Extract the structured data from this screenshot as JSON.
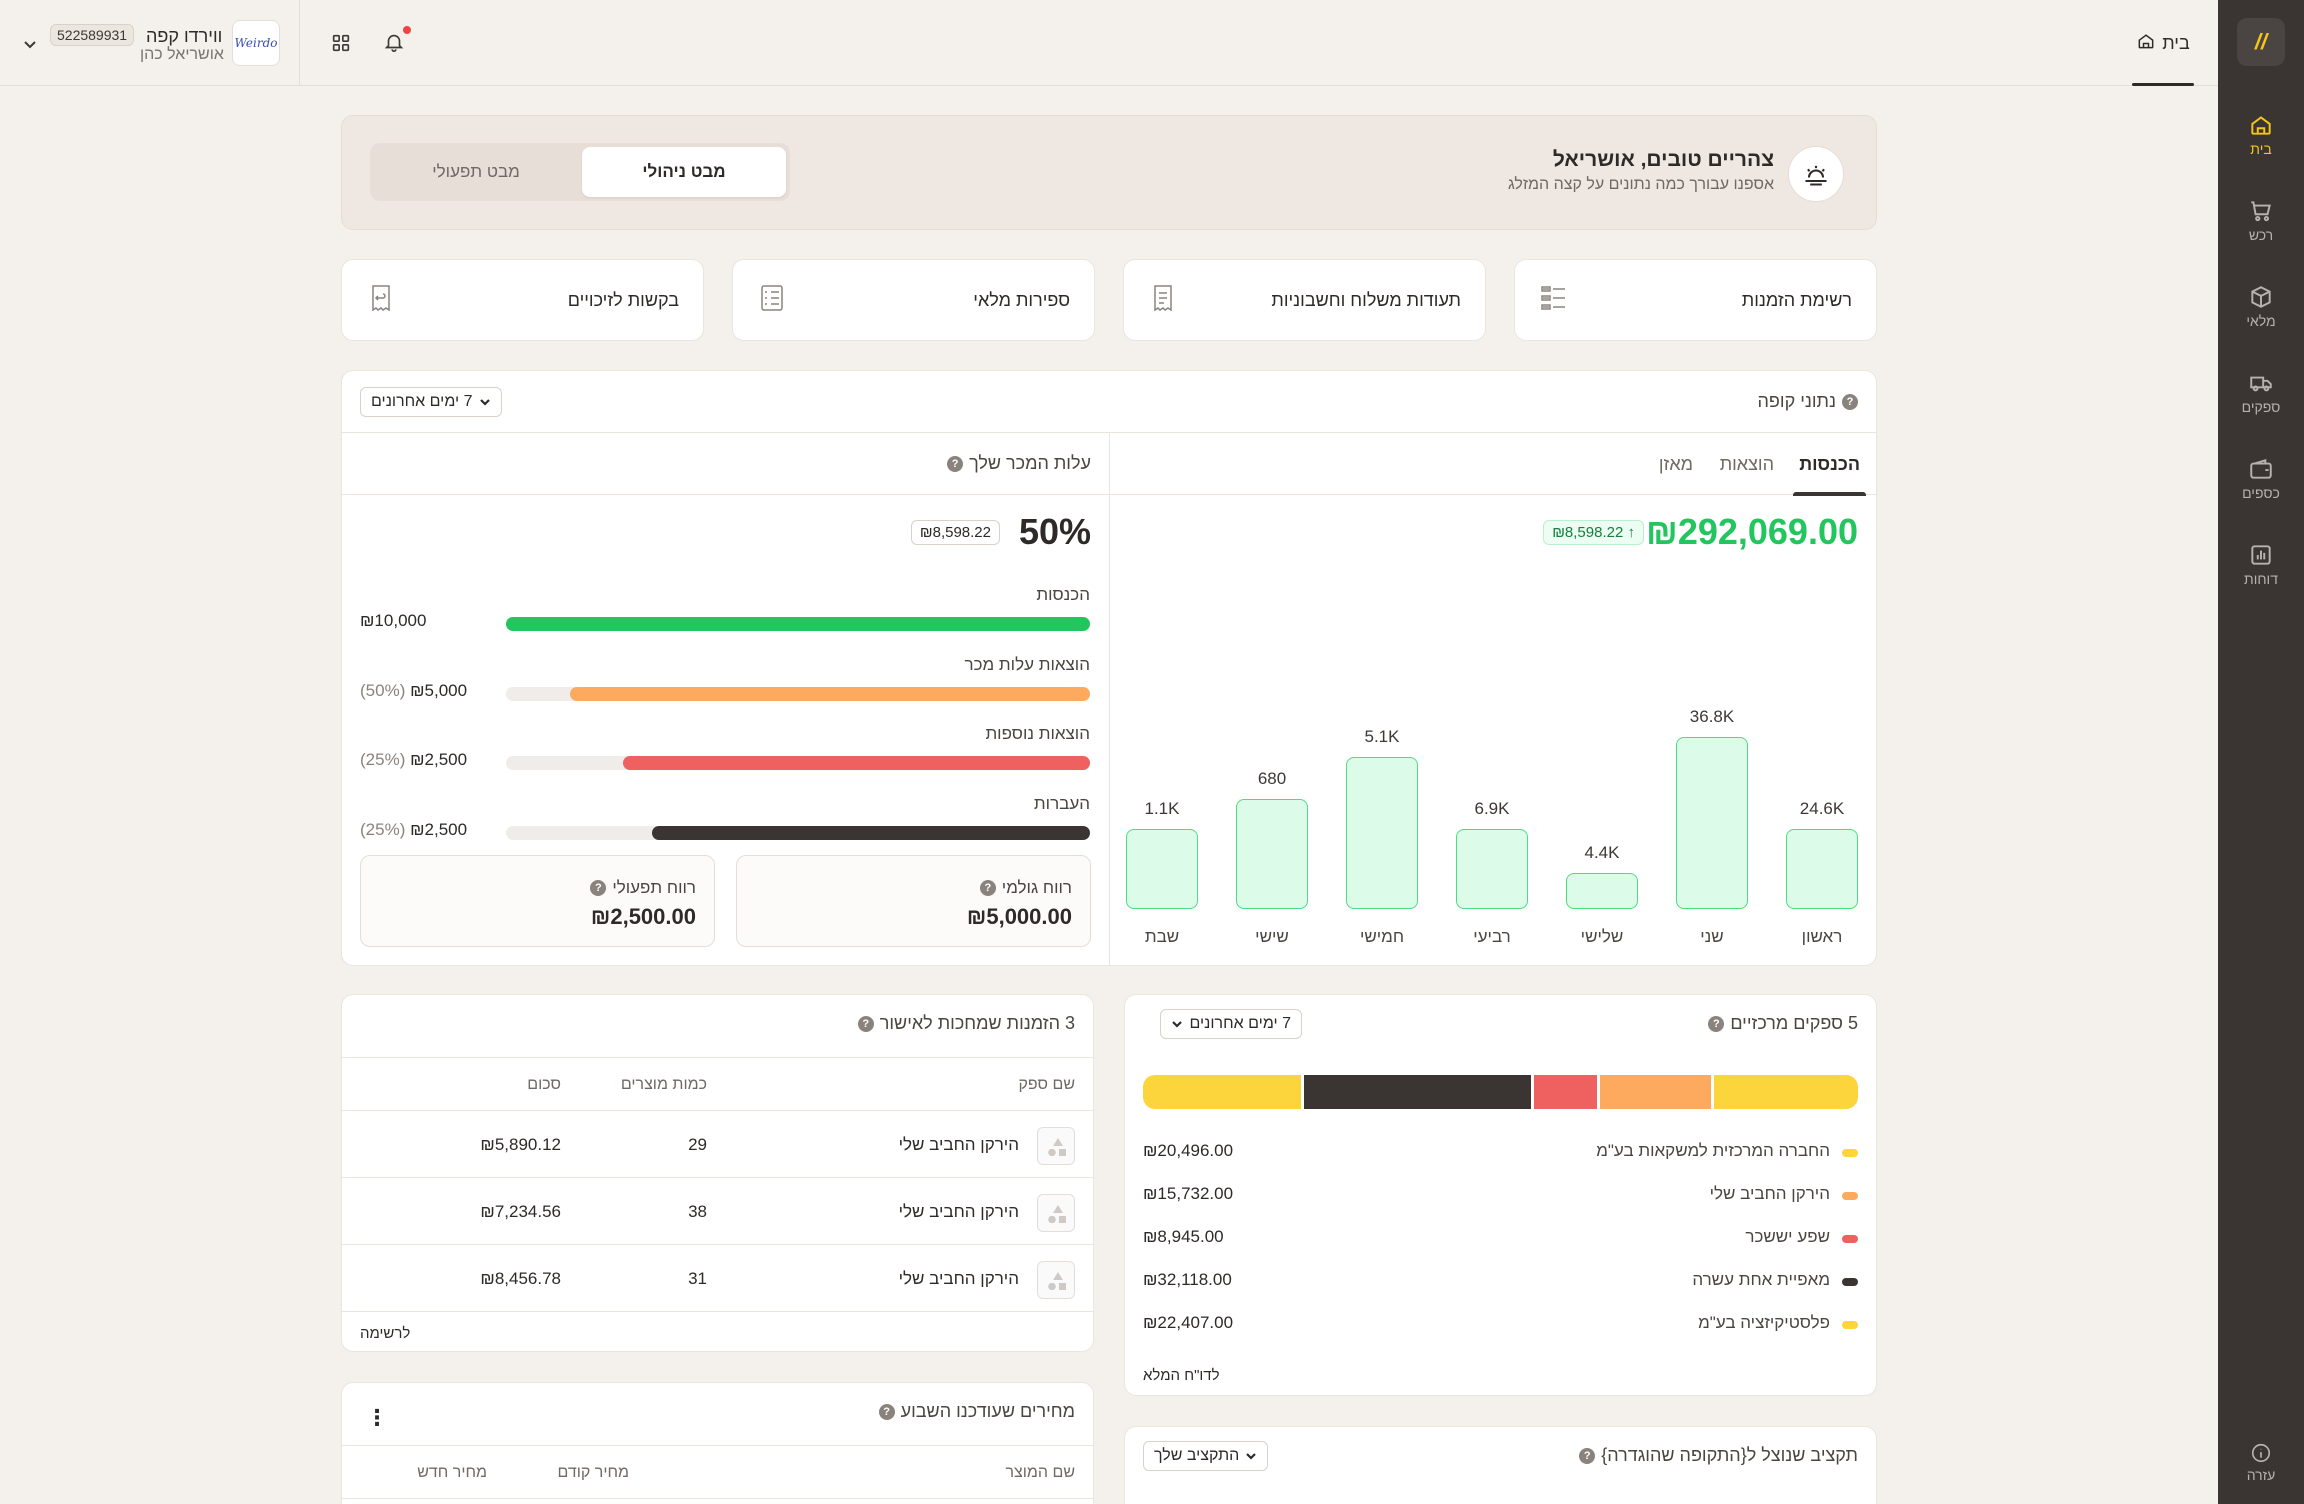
{
  "rail": {
    "items": [
      {
        "label": "בית",
        "icon": "home-icon"
      },
      {
        "label": "רכש",
        "icon": "cart-icon"
      },
      {
        "label": "מלאי",
        "icon": "box-icon"
      },
      {
        "label": "ספקים",
        "icon": "truck-icon"
      },
      {
        "label": "כספים",
        "icon": "wallet-icon"
      },
      {
        "label": "דוחות",
        "icon": "chart-icon"
      }
    ],
    "help": "עזרה"
  },
  "topbar": {
    "home_tab": "בית",
    "org_name": "ווירדו קפה",
    "org_id": "522589931",
    "org_user": "אושריאל כהן",
    "org_logo_text": "Weirdo"
  },
  "welcome": {
    "title": "צהריים טובים, אושריאל",
    "subtitle": "אספנו עבורך כמה נתונים על קצה המזלג",
    "view_ops": "מבט תפעולי",
    "view_mgmt": "מבט ניהולי"
  },
  "quick_links": [
    "רשימת הזמנות",
    "תעודות משלוח וחשבוניות",
    "ספירות מלאי",
    "בקשות לזיכויים"
  ],
  "cash": {
    "title": "נתוני קופה",
    "range": "7 ימים אחרונים",
    "tabs": [
      "הכנסות",
      "הוצאות",
      "מאזן"
    ],
    "total": "₪292,069.00",
    "delta": "₪8,598.22",
    "cogs_title": "עלות המכר שלך",
    "cogs_pct": "50%",
    "cogs_chip": "₪8,598.22",
    "progress": [
      {
        "label": "הכנסות",
        "amount": "₪10,000",
        "pct": "",
        "fill": 1.0,
        "color": "#22c55e"
      },
      {
        "label": "הוצאות עלות מכר",
        "amount": "₪5,000",
        "pct": "(50%)",
        "fill": 0.89,
        "color": "#fdaa5f"
      },
      {
        "label": "הוצאות נוספות",
        "amount": "₪2,500",
        "pct": "(25%)",
        "fill": 0.8,
        "color": "#ef6060"
      },
      {
        "label": "העברות",
        "amount": "₪2,500",
        "pct": "(25%)",
        "fill": 0.75,
        "color": "#3a3533"
      }
    ],
    "gross_label": "רווח גולמי",
    "gross_value": "₪5,000.00",
    "op_label": "רווח תפעולי",
    "op_value": "₪2,500.00"
  },
  "chart_data": {
    "type": "bar",
    "categories": [
      "ראשון",
      "שני",
      "שלישי",
      "רביעי",
      "חמישי",
      "שישי",
      "שבת"
    ],
    "values": [
      24.6,
      36.8,
      4.4,
      6.9,
      5.1,
      0.68,
      1.1
    ],
    "labels": [
      "24.6K",
      "36.8K",
      "4.4K",
      "6.9K",
      "5.1K",
      "680",
      "1.1K"
    ]
  },
  "suppliers": {
    "title": "5 ספקים מרכזיים",
    "range": "7 ימים אחרונים",
    "rows": [
      {
        "name": "החברה המרכזית למשקאות בע\"מ",
        "amount": "₪20,496.00",
        "color": "#fcd53c",
        "share": 0.2296
      },
      {
        "name": "הירקן החביב שלי",
        "amount": "₪15,732.00",
        "color": "#fdaa5f",
        "share": 0.1762
      },
      {
        "name": "שפע יששכר",
        "amount": "₪8,945.00",
        "color": "#ef6060",
        "share": 0.1002
      },
      {
        "name": "מאפיית אחת עשרה",
        "amount": "₪32,118.00",
        "color": "#3a3533",
        "share": 0.3599
      },
      {
        "name": "פלסטיקיזציה בע\"מ",
        "amount": "₪22,407.00",
        "color": "#fcd53c",
        "share": 0.2511
      }
    ],
    "link": "לדו\"ח המלא"
  },
  "orders": {
    "title": "3 הזמנות שמחכות לאישור",
    "cols": [
      "שם ספק",
      "כמות מוצרים",
      "סכום"
    ],
    "rows": [
      {
        "supplier": "הירקן החביב שלי",
        "qty": "29",
        "sum": "₪5,890.12"
      },
      {
        "supplier": "הירקן החביב שלי",
        "qty": "38",
        "sum": "₪7,234.56"
      },
      {
        "supplier": "הירקן החביב שלי",
        "qty": "31",
        "sum": "₪8,456.78"
      }
    ],
    "link": "לרשימה"
  },
  "prices": {
    "title": "מחירים שעודכנו השבוע",
    "cols": [
      "שם המוצר",
      "מחיר קודם",
      "מחיר חדש"
    ]
  },
  "budget": {
    "title": "תקציב שנוצל ל{התקופה שהוגדרה}",
    "dropdown": "התקציב שלך"
  }
}
